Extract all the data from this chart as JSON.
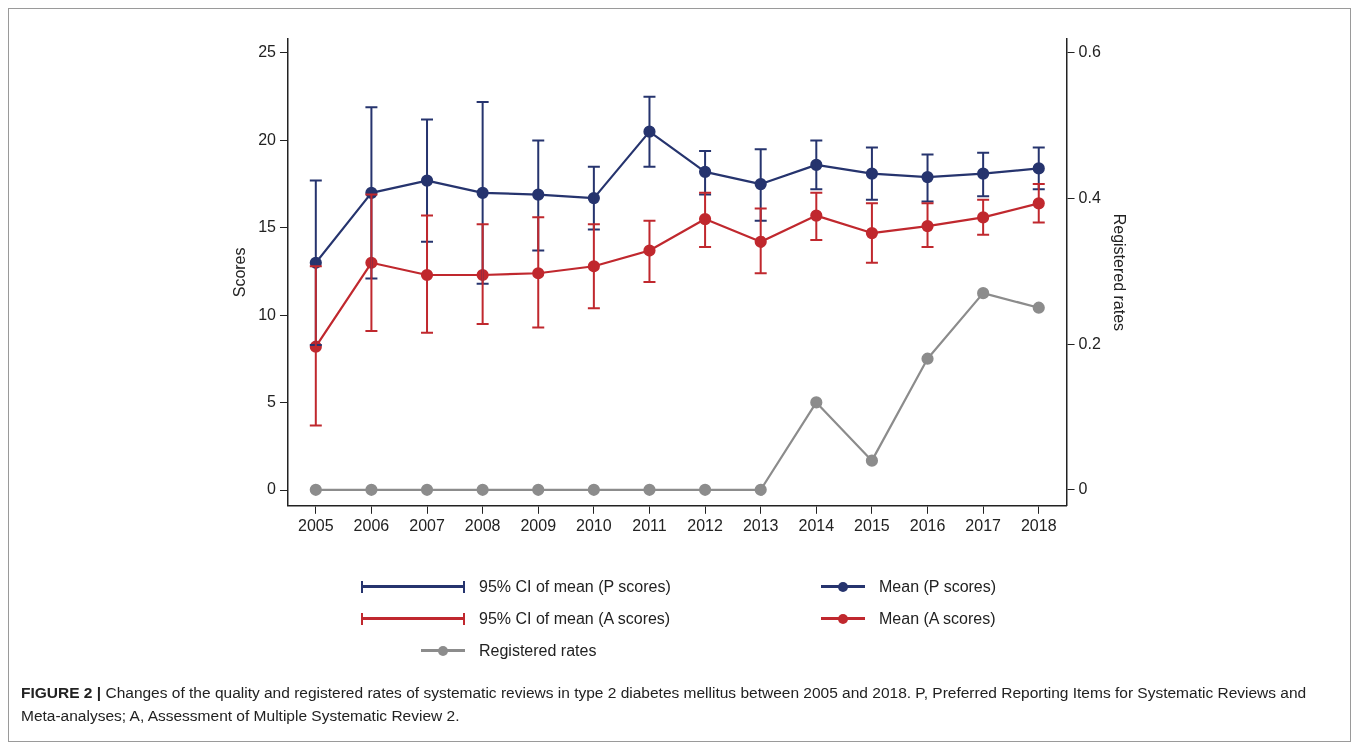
{
  "chart_data": {
    "type": "line",
    "ylabel": "Scores",
    "y2label": "Registered rates",
    "categories": [
      "2005",
      "2006",
      "2007",
      "2008",
      "2009",
      "2010",
      "2011",
      "2012",
      "2013",
      "2014",
      "2015",
      "2016",
      "2017",
      "2018"
    ],
    "ylim": [
      -0.9,
      25.8
    ],
    "yticks": [
      0,
      5,
      10,
      15,
      20,
      25
    ],
    "y2lim": [
      -0.022,
      0.619
    ],
    "y2ticks": [
      0,
      0.2,
      0.4,
      0.6
    ],
    "grid": false,
    "legend": "bottom",
    "marker": "circle",
    "line_style": "solid",
    "series": [
      {
        "name": "Mean (P scores)",
        "color": "#26346e",
        "values": [
          13.0,
          17.0,
          17.7,
          17.0,
          16.9,
          16.7,
          20.5,
          18.2,
          17.5,
          18.6,
          18.1,
          17.9,
          18.1,
          18.4
        ],
        "errors": [
          [
            8.3,
            17.7
          ],
          [
            12.1,
            21.9
          ],
          [
            14.2,
            21.2
          ],
          [
            11.8,
            22.2
          ],
          [
            13.7,
            20.0
          ],
          [
            14.9,
            18.5
          ],
          [
            18.5,
            22.5
          ],
          [
            16.9,
            19.4
          ],
          [
            15.4,
            19.5
          ],
          [
            17.2,
            20.0
          ],
          [
            16.6,
            19.6
          ],
          [
            16.5,
            19.2
          ],
          [
            16.8,
            19.3
          ],
          [
            17.2,
            19.6
          ]
        ]
      },
      {
        "name": "Mean (A scores)",
        "color": "#c0282e",
        "values": [
          8.2,
          13.0,
          12.3,
          12.3,
          12.4,
          12.8,
          13.7,
          15.5,
          14.2,
          15.7,
          14.7,
          15.1,
          15.6,
          16.4
        ],
        "errors": [
          [
            3.7,
            12.8
          ],
          [
            9.1,
            16.9
          ],
          [
            9.0,
            15.7
          ],
          [
            9.5,
            15.2
          ],
          [
            9.3,
            15.6
          ],
          [
            10.4,
            15.2
          ],
          [
            11.9,
            15.4
          ],
          [
            13.9,
            17.0
          ],
          [
            12.4,
            16.1
          ],
          [
            14.3,
            17.0
          ],
          [
            13.0,
            16.4
          ],
          [
            13.9,
            16.4
          ],
          [
            14.6,
            16.6
          ],
          [
            15.3,
            17.5
          ]
        ]
      },
      {
        "name": "Registered rates",
        "color": "#8c8c8c",
        "axis": "y2",
        "values": [
          0,
          0,
          0,
          0,
          0,
          0,
          0,
          0,
          0,
          0.12,
          0.04,
          0.18,
          0.27,
          0.25
        ]
      }
    ],
    "annotations": [
      "95% CI of mean (P scores)",
      "95% CI of mean (A scores)",
      "FIGURE 2 | Changes of the quality and registered rates of systematic reviews in type 2 diabetes mellitus between 2005 and 2018. P, Preferred Reporting Items for Systematic Reviews and Meta-analyses; A, Assessment of Multiple Systematic Review 2."
    ]
  }
}
